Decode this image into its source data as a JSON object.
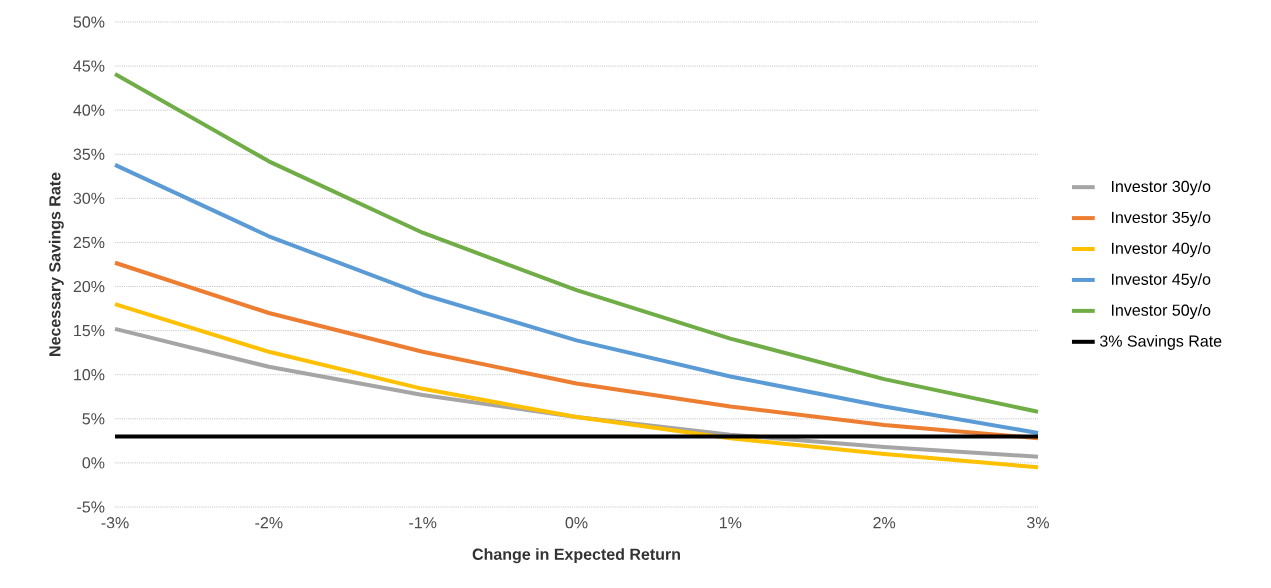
{
  "chart_data": {
    "type": "line",
    "xlabel": "Change in Expected Return",
    "ylabel": "Necessary Savings Rate",
    "x": [
      -3,
      -2,
      -1,
      0,
      1,
      2,
      3
    ],
    "xlim": [
      -3,
      3
    ],
    "xticks": [
      {
        "value": -3,
        "label": "-3%"
      },
      {
        "value": -2,
        "label": "-2%"
      },
      {
        "value": -1,
        "label": "-1%"
      },
      {
        "value": 0,
        "label": "0%"
      },
      {
        "value": 1,
        "label": "1%"
      },
      {
        "value": 2,
        "label": "2%"
      },
      {
        "value": 3,
        "label": "3%"
      }
    ],
    "ylim": [
      -5,
      50
    ],
    "yticks": [
      {
        "value": -5,
        "label": "-5%"
      },
      {
        "value": 0,
        "label": "0%"
      },
      {
        "value": 5,
        "label": "5%"
      },
      {
        "value": 10,
        "label": "10%"
      },
      {
        "value": 15,
        "label": "15%"
      },
      {
        "value": 20,
        "label": "20%"
      },
      {
        "value": 25,
        "label": "25%"
      },
      {
        "value": 30,
        "label": "30%"
      },
      {
        "value": 35,
        "label": "35%"
      },
      {
        "value": 40,
        "label": "40%"
      },
      {
        "value": 45,
        "label": "45%"
      },
      {
        "value": 50,
        "label": "50%"
      }
    ],
    "grid": "y",
    "legend": "right",
    "marker": "none",
    "line_style": "solid",
    "series": [
      {
        "name": "Investor 30y/o",
        "color": "#a5a5a5",
        "values": [
          15.2,
          10.9,
          7.7,
          5.2,
          3.2,
          1.8,
          0.7
        ]
      },
      {
        "name": "Investor 35y/o",
        "color": "#ed7d31",
        "values": [
          22.7,
          17.0,
          12.6,
          9.0,
          6.4,
          4.3,
          2.8
        ]
      },
      {
        "name": "Investor 40y/o",
        "color": "#ffc000",
        "values": [
          18.0,
          12.6,
          8.4,
          5.2,
          2.8,
          1.0,
          -0.5
        ]
      },
      {
        "name": "Investor 45y/o",
        "color": "#5b9bd5",
        "values": [
          33.8,
          25.7,
          19.1,
          13.9,
          9.8,
          6.4,
          3.4
        ]
      },
      {
        "name": "Investor 50y/o",
        "color": "#70ad47",
        "values": [
          44.1,
          34.2,
          26.1,
          19.6,
          14.1,
          9.5,
          5.8
        ]
      },
      {
        "name": "3% Savings Rate",
        "color": "#000000",
        "values": [
          3,
          3,
          3,
          3,
          3,
          3,
          3
        ]
      }
    ]
  }
}
